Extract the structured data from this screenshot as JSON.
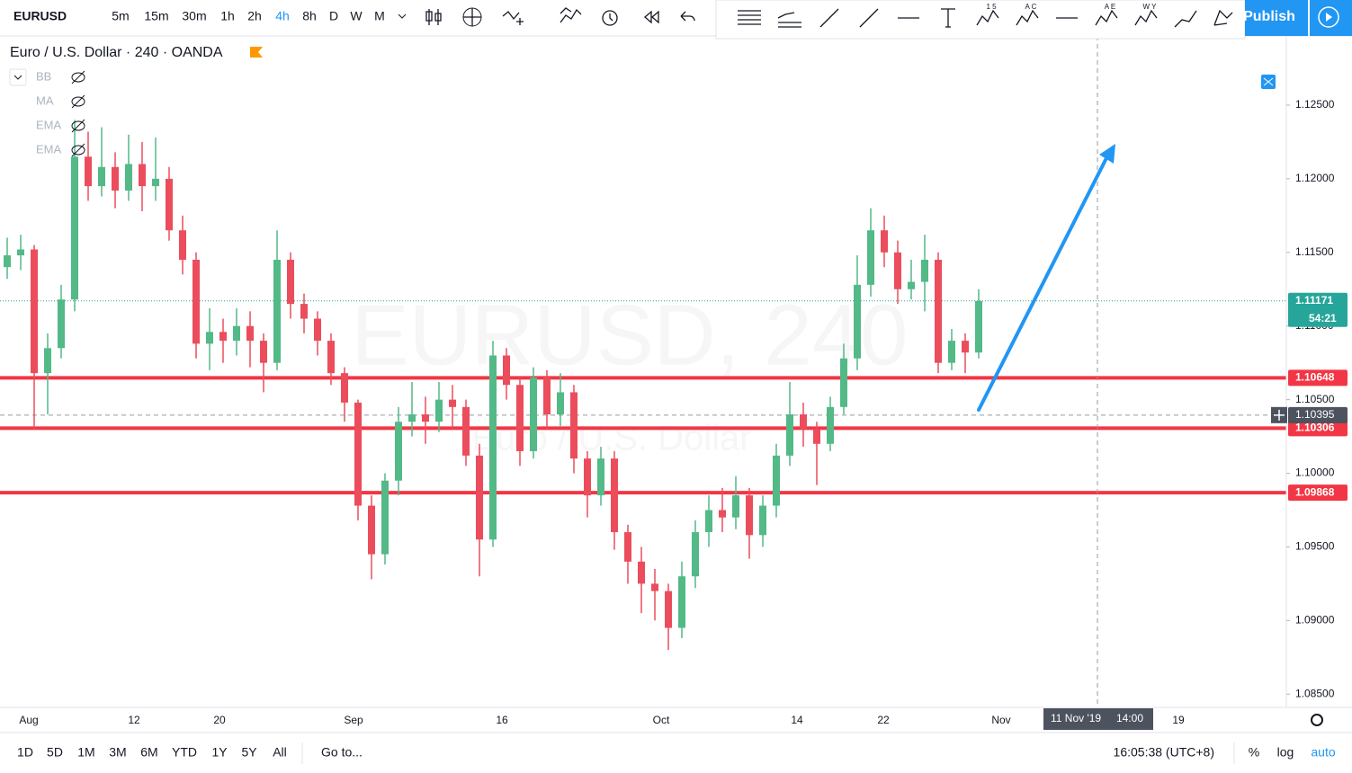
{
  "toolbar": {
    "symbol": "EURUSD",
    "intervals": [
      "5m",
      "15m",
      "30m",
      "1h",
      "2h",
      "4h",
      "8h",
      "D",
      "W",
      "M"
    ],
    "drawing_labels": [
      "1 5",
      "A C",
      "A E",
      "W Y"
    ],
    "publish": "Publish"
  },
  "legend": {
    "title": "Euro / U.S. Dollar · 240 · OANDA",
    "indicators": [
      "BB",
      "MA",
      "EMA",
      "EMA"
    ]
  },
  "watermark": {
    "symbol": "EURUSD, 240",
    "description": "Euro / U.S. Dollar"
  },
  "chart_data": {
    "type": "candlestick",
    "up_color": "#53b987",
    "down_color": "#eb4d5c",
    "candles": [
      [
        1.114,
        1.116,
        1.1132,
        1.1148
      ],
      [
        1.1148,
        1.1162,
        1.1138,
        1.1152
      ],
      [
        1.1152,
        1.1155,
        1.103,
        1.1068
      ],
      [
        1.1068,
        1.1095,
        1.104,
        1.1085
      ],
      [
        1.1085,
        1.1128,
        1.1078,
        1.1118
      ],
      [
        1.1118,
        1.124,
        1.111,
        1.1215
      ],
      [
        1.1215,
        1.1232,
        1.1185,
        1.1195
      ],
      [
        1.1195,
        1.1235,
        1.1188,
        1.1208
      ],
      [
        1.1208,
        1.1218,
        1.118,
        1.1192
      ],
      [
        1.1192,
        1.123,
        1.1185,
        1.121
      ],
      [
        1.121,
        1.1225,
        1.1178,
        1.1195
      ],
      [
        1.1195,
        1.1228,
        1.1185,
        1.12
      ],
      [
        1.12,
        1.1208,
        1.1158,
        1.1165
      ],
      [
        1.1165,
        1.1175,
        1.1135,
        1.1145
      ],
      [
        1.1145,
        1.115,
        1.1078,
        1.1088
      ],
      [
        1.1088,
        1.1112,
        1.107,
        1.1096
      ],
      [
        1.1096,
        1.1105,
        1.1075,
        1.109
      ],
      [
        1.109,
        1.1112,
        1.108,
        1.11
      ],
      [
        1.11,
        1.111,
        1.1072,
        1.109
      ],
      [
        1.109,
        1.1095,
        1.1055,
        1.1075
      ],
      [
        1.1075,
        1.1165,
        1.107,
        1.1145
      ],
      [
        1.1145,
        1.115,
        1.1105,
        1.1115
      ],
      [
        1.1115,
        1.1122,
        1.1095,
        1.1105
      ],
      [
        1.1105,
        1.111,
        1.108,
        1.109
      ],
      [
        1.109,
        1.1095,
        1.106,
        1.1068
      ],
      [
        1.1068,
        1.1072,
        1.1035,
        1.1048
      ],
      [
        1.1048,
        1.105,
        1.0968,
        1.0978
      ],
      [
        1.0978,
        1.0985,
        1.0928,
        1.0945
      ],
      [
        1.0945,
        1.1,
        1.0938,
        1.0995
      ],
      [
        1.0995,
        1.1045,
        1.0985,
        1.1035
      ],
      [
        1.1035,
        1.1062,
        1.1025,
        1.104
      ],
      [
        1.104,
        1.1052,
        1.102,
        1.1035
      ],
      [
        1.1035,
        1.1062,
        1.1028,
        1.105
      ],
      [
        1.105,
        1.106,
        1.103,
        1.1045
      ],
      [
        1.1045,
        1.105,
        1.1005,
        1.1012
      ],
      [
        1.1012,
        1.102,
        1.093,
        1.0955
      ],
      [
        1.0955,
        1.109,
        1.095,
        1.108
      ],
      [
        1.108,
        1.1085,
        1.105,
        1.106
      ],
      [
        1.106,
        1.1065,
        1.1005,
        1.1015
      ],
      [
        1.1015,
        1.1072,
        1.101,
        1.1065
      ],
      [
        1.1065,
        1.107,
        1.103,
        1.104
      ],
      [
        1.104,
        1.1068,
        1.1032,
        1.1055
      ],
      [
        1.1055,
        1.106,
        1.1,
        1.101
      ],
      [
        1.101,
        1.1015,
        1.097,
        1.0985
      ],
      [
        1.0985,
        1.1018,
        1.0978,
        1.101
      ],
      [
        1.101,
        1.1015,
        1.0948,
        1.096
      ],
      [
        1.096,
        1.0965,
        1.0925,
        1.094
      ],
      [
        1.094,
        1.095,
        1.0905,
        1.0925
      ],
      [
        1.0925,
        1.0935,
        1.09,
        1.092
      ],
      [
        1.092,
        1.0925,
        1.088,
        1.0895
      ],
      [
        1.0895,
        1.094,
        1.0888,
        1.093
      ],
      [
        1.093,
        1.0968,
        1.0922,
        1.096
      ],
      [
        1.096,
        1.0985,
        1.095,
        1.0975
      ],
      [
        1.0975,
        1.099,
        1.096,
        1.097
      ],
      [
        1.097,
        1.0998,
        1.0962,
        1.0985
      ],
      [
        1.0985,
        1.099,
        1.0942,
        1.0958
      ],
      [
        1.0958,
        1.0985,
        1.095,
        1.0978
      ],
      [
        1.0978,
        1.102,
        1.097,
        1.1012
      ],
      [
        1.1012,
        1.1062,
        1.1005,
        1.104
      ],
      [
        1.104,
        1.1048,
        1.1018,
        1.103
      ],
      [
        1.103,
        1.1035,
        1.0992,
        1.102
      ],
      [
        1.102,
        1.1052,
        1.1015,
        1.1045
      ],
      [
        1.1045,
        1.1088,
        1.104,
        1.1078
      ],
      [
        1.1078,
        1.1148,
        1.107,
        1.1128
      ],
      [
        1.1128,
        1.118,
        1.112,
        1.1165
      ],
      [
        1.1165,
        1.1175,
        1.114,
        1.115
      ],
      [
        1.115,
        1.1158,
        1.1115,
        1.1125
      ],
      [
        1.1125,
        1.1145,
        1.1118,
        1.113
      ],
      [
        1.113,
        1.1162,
        1.111,
        1.1145
      ],
      [
        1.1145,
        1.115,
        1.1068,
        1.1075
      ],
      [
        1.1075,
        1.1098,
        1.107,
        1.109
      ],
      [
        1.109,
        1.1095,
        1.1068,
        1.1082
      ],
      [
        1.1082,
        1.1125,
        1.1078,
        1.1117
      ]
    ],
    "ylim": [
      1.0841,
      1.1297
    ],
    "yticks": [
      {
        "value": 1.085,
        "label": "1.08500"
      },
      {
        "value": 1.09,
        "label": "1.09000"
      },
      {
        "value": 1.095,
        "label": "1.09500"
      },
      {
        "value": 1.1,
        "label": "1.10000"
      },
      {
        "value": 1.105,
        "label": "1.10500"
      },
      {
        "value": 1.11,
        "label": "1.11000"
      },
      {
        "value": 1.115,
        "label": "1.11500"
      },
      {
        "value": 1.12,
        "label": "1.12000"
      },
      {
        "value": 1.125,
        "label": "1.12500"
      }
    ],
    "grid": false,
    "x_labels": [
      "Aug",
      "12",
      "20",
      "Sep",
      "16",
      "Oct",
      "14",
      "22",
      "Nov",
      "19"
    ],
    "levels": [
      1.10648,
      1.10306,
      1.09868
    ],
    "level_color": "#f23645",
    "last_price": 1.11171,
    "last_price_color": "#26a69a",
    "countdown": "54:21",
    "crosshair": {
      "price": 1.10395,
      "date": "11 Nov '19",
      "time": "14:00"
    }
  },
  "bottom_bar": {
    "ranges": [
      "1D",
      "5D",
      "1M",
      "3M",
      "6M",
      "YTD",
      "1Y",
      "5Y",
      "All"
    ],
    "goto": "Go to...",
    "clock": "16:05:38 (UTC+8)",
    "options": [
      "%",
      "log",
      "auto"
    ]
  }
}
